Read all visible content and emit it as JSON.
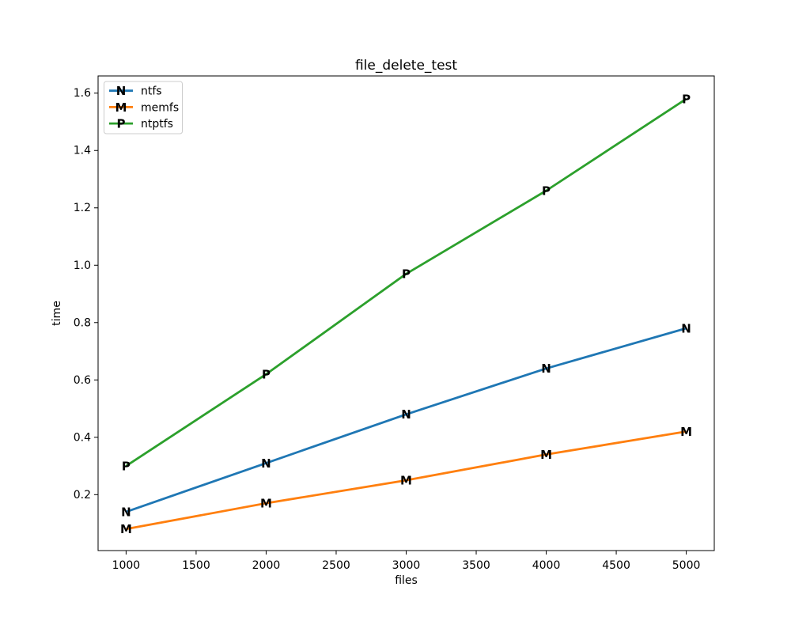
{
  "figure": {
    "background": "#ffffff"
  },
  "chart_data": {
    "type": "line",
    "title": "file_delete_test",
    "xlabel": "files",
    "ylabel": "time",
    "x": [
      1000,
      2000,
      3000,
      4000,
      5000
    ],
    "series": [
      {
        "name": "ntfs",
        "marker": "N",
        "color": "#1f77b4",
        "values": [
          0.14,
          0.31,
          0.48,
          0.64,
          0.78
        ]
      },
      {
        "name": "memfs",
        "marker": "M",
        "color": "#ff7f0e",
        "values": [
          0.08,
          0.17,
          0.25,
          0.34,
          0.42
        ]
      },
      {
        "name": "ntptfs",
        "marker": "P",
        "color": "#2ca02c",
        "values": [
          0.3,
          0.62,
          0.97,
          1.26,
          1.58
        ]
      }
    ],
    "xlim": [
      800,
      5200
    ],
    "ylim": [
      0.005,
      1.66
    ],
    "xticks": [
      1000,
      1500,
      2000,
      2500,
      3000,
      3500,
      4000,
      4500,
      5000
    ],
    "yticks": [
      0.2,
      0.4,
      0.6,
      0.8,
      1.0,
      1.2,
      1.4,
      1.6
    ],
    "grid": false,
    "legend_position": "upper left",
    "axis_color": "#000000",
    "legend_border_color": "#cccccc"
  }
}
